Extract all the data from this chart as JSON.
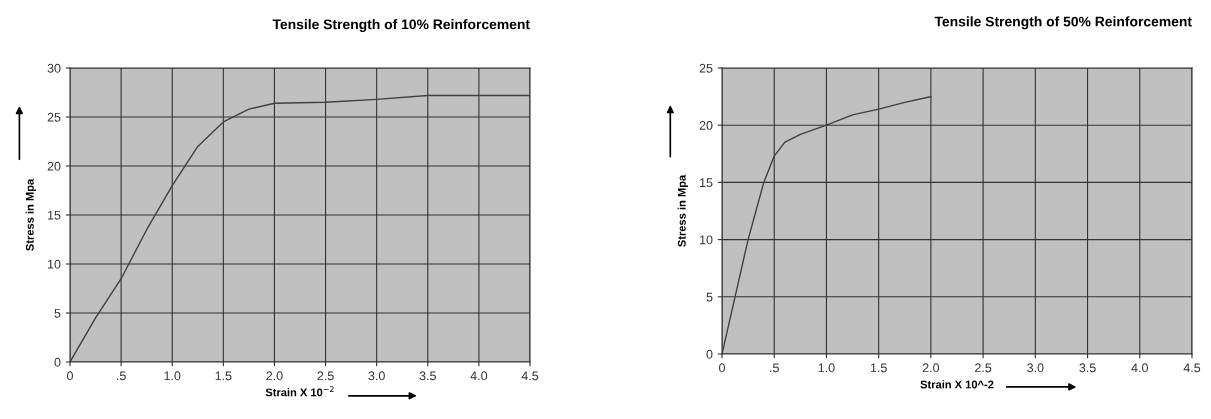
{
  "chart_data": [
    {
      "type": "line",
      "title": "Tensile Strength of 10% Reinforcement",
      "xlabel": "Strain X 10$^{−2}$",
      "ylabel": "Stress in Mpa",
      "x": [
        0,
        0.25,
        0.5,
        0.75,
        1.0,
        1.25,
        1.5,
        1.75,
        2.0,
        2.5,
        3.0,
        3.5,
        4.0,
        4.5
      ],
      "series": [
        {
          "color": "#404040",
          "values": [
            0,
            4.5,
            8.5,
            13.5,
            18,
            22,
            24.5,
            25.8,
            26.4,
            26.5,
            26.8,
            27.2,
            27.2,
            27.2
          ]
        }
      ],
      "xlim": [
        0,
        4.5
      ],
      "ylim": [
        0,
        30
      ],
      "xticks": [
        0,
        {
          "value": 0.5,
          "label": ".5"
        },
        {
          "value": 1.0,
          "label": "1.0"
        },
        1.5,
        {
          "value": 2.0,
          "label": "2.0"
        },
        2.5,
        {
          "value": 3.0,
          "label": "3.0"
        },
        3.5,
        {
          "value": 4.0,
          "label": "4.0"
        },
        4.5
      ],
      "yticks": [
        0,
        5,
        10,
        15,
        20,
        25,
        30
      ],
      "grid": true,
      "marker": "none",
      "line_style": "solid"
    },
    {
      "type": "line",
      "title": "Tensile Strength of 50% Reinforcement",
      "xlabel": "Strain X 10^-2",
      "ylabel": "Stress in Mpa",
      "x": [
        0,
        0.125,
        0.25,
        0.4,
        0.5,
        0.6,
        0.75,
        1.0,
        1.25,
        1.5,
        1.75,
        2.0
      ],
      "series": [
        {
          "color": "#404040",
          "values": [
            0,
            5,
            10,
            15,
            17.3,
            18.5,
            19.2,
            20,
            20.9,
            21.4,
            22,
            22.5
          ]
        }
      ],
      "xlim": [
        0,
        4.5
      ],
      "ylim": [
        0,
        25
      ],
      "xticks": [
        0,
        {
          "value": 0.5,
          "label": ".5"
        },
        {
          "value": 1.0,
          "label": "1.0"
        },
        1.5,
        {
          "value": 2.0,
          "label": "2.0"
        },
        2.5,
        {
          "value": 3.0,
          "label": "3.0"
        },
        3.5,
        {
          "value": 4.0,
          "label": "4.0"
        },
        4.5
      ],
      "yticks": [
        0,
        5,
        10,
        15,
        20,
        25
      ],
      "grid": true,
      "marker": "none",
      "line_style": "solid"
    }
  ]
}
